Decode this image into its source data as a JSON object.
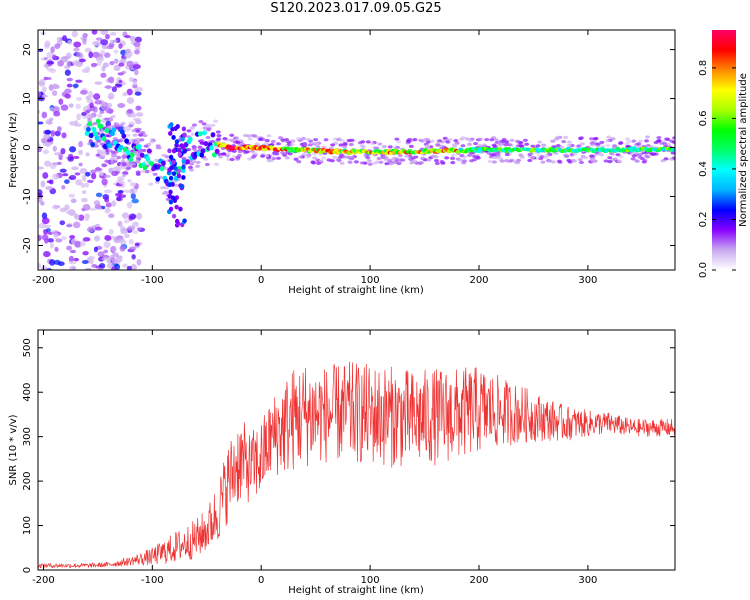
{
  "chart_data": [
    {
      "type": "heatmap",
      "title": "S120.2023.017.09.05.G25",
      "xlabel": "Height of straight line (km)",
      "ylabel": "Frequency (Hz)",
      "xlim": [
        -205,
        380
      ],
      "ylim": [
        -25,
        24
      ],
      "xticks": [
        -200,
        -100,
        0,
        100,
        200,
        300
      ],
      "yticks": [
        -20,
        -10,
        0,
        10,
        20
      ],
      "colorbar": {
        "label": "Normalized spectral amplitude",
        "range": [
          0,
          0.95
        ],
        "ticks": [
          0.0,
          0.2,
          0.4,
          0.6,
          0.8
        ],
        "stops": [
          "#ffffff",
          "#c9a9ef",
          "#8800ff",
          "#0000ff",
          "#00b4ff",
          "#00ffff",
          "#00ff66",
          "#00ff00",
          "#aaff00",
          "#ffff00",
          "#ff8800",
          "#ff0000",
          "#ff0066"
        ]
      },
      "ridge": [
        {
          "x": -150,
          "y": 3
        },
        {
          "x": -130,
          "y": 1
        },
        {
          "x": -110,
          "y": -1.5
        },
        {
          "x": -95,
          "y": -4
        },
        {
          "x": -85,
          "y": -6
        },
        {
          "x": -75,
          "y": -3
        },
        {
          "x": -60,
          "y": 0.5
        },
        {
          "x": -45,
          "y": 1
        },
        {
          "x": -30,
          "y": 0
        },
        {
          "x": 0,
          "y": 0
        },
        {
          "x": 30,
          "y": -0.5
        },
        {
          "x": 100,
          "y": -1
        },
        {
          "x": 200,
          "y": -0.5
        },
        {
          "x": 300,
          "y": -0.5
        },
        {
          "x": 380,
          "y": -0.3
        }
      ]
    },
    {
      "type": "line",
      "xlabel": "Height of straight line (km)",
      "ylabel": "SNR (10 * v/v)",
      "xlim": [
        -205,
        380
      ],
      "ylim": [
        0,
        540
      ],
      "xticks": [
        -200,
        -100,
        0,
        100,
        200,
        300
      ],
      "yticks": [
        0,
        100,
        200,
        300,
        400,
        500
      ],
      "color": "#ee3333",
      "series": [
        {
          "x": [
            -205,
            -180,
            -160,
            -140,
            -120,
            -100,
            -80,
            -60,
            -50,
            -40,
            -30,
            -20,
            -10,
            0,
            10,
            20,
            30,
            40,
            60,
            80,
            100,
            120,
            140,
            160,
            180,
            200,
            220,
            240,
            260,
            280,
            300,
            320,
            340,
            360,
            380
          ],
          "values": [
            10,
            10,
            10,
            12,
            20,
            30,
            50,
            70,
            90,
            130,
            200,
            250,
            230,
            250,
            300,
            320,
            340,
            350,
            350,
            355,
            350,
            345,
            340,
            345,
            350,
            360,
            355,
            350,
            340,
            330,
            330,
            330,
            320,
            320,
            320
          ],
          "spread": [
            5,
            5,
            5,
            6,
            10,
            20,
            35,
            45,
            50,
            70,
            90,
            100,
            80,
            90,
            90,
            110,
            120,
            120,
            110,
            115,
            115,
            115,
            110,
            110,
            105,
            100,
            80,
            65,
            50,
            40,
            30,
            25,
            20,
            20,
            20
          ]
        }
      ]
    }
  ]
}
